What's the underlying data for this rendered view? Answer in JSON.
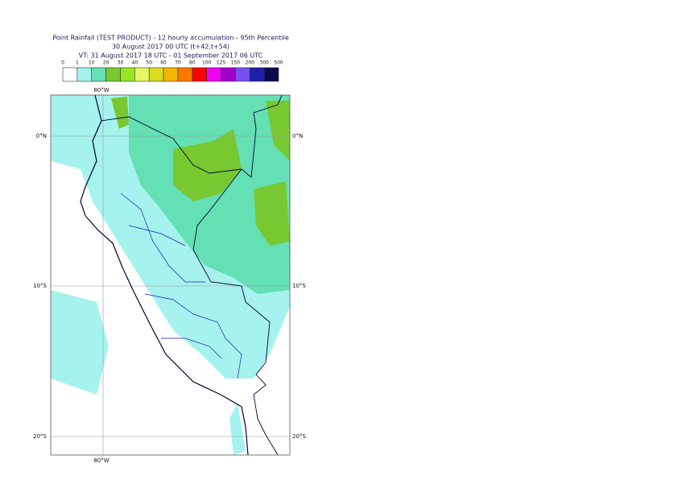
{
  "header": {
    "lines": [
      "Point Rainfall (TEST PRODUCT) - 12 hourly accumulation - 95th Percentile",
      "30 August 2017 00 UTC (t+42,t+54)",
      "VT: 31 August 2017 18 UTC - 01 September 2017 06 UTC"
    ]
  },
  "legend": {
    "labels": [
      0,
      1,
      10,
      20,
      30,
      40,
      50,
      60,
      70,
      80,
      100,
      125,
      150,
      200,
      300,
      500
    ],
    "colors": [
      "#ffffff",
      "#a6f2ee",
      "#64e0b4",
      "#78c832",
      "#96e61e",
      "#e6f564",
      "#dcdc1e",
      "#f5b400",
      "#fa7800",
      "#ff0000",
      "#f000f0",
      "#a000c8",
      "#7850f0",
      "#1e1eaa",
      "#0a0a50"
    ]
  },
  "map": {
    "top_labels": [
      "80°W"
    ],
    "bottom_labels": [
      "80°W"
    ],
    "left_labels": [
      "0°N",
      "10°S",
      "20°S"
    ],
    "right_labels": [
      "0°N",
      "10°S",
      "20°S"
    ]
  }
}
